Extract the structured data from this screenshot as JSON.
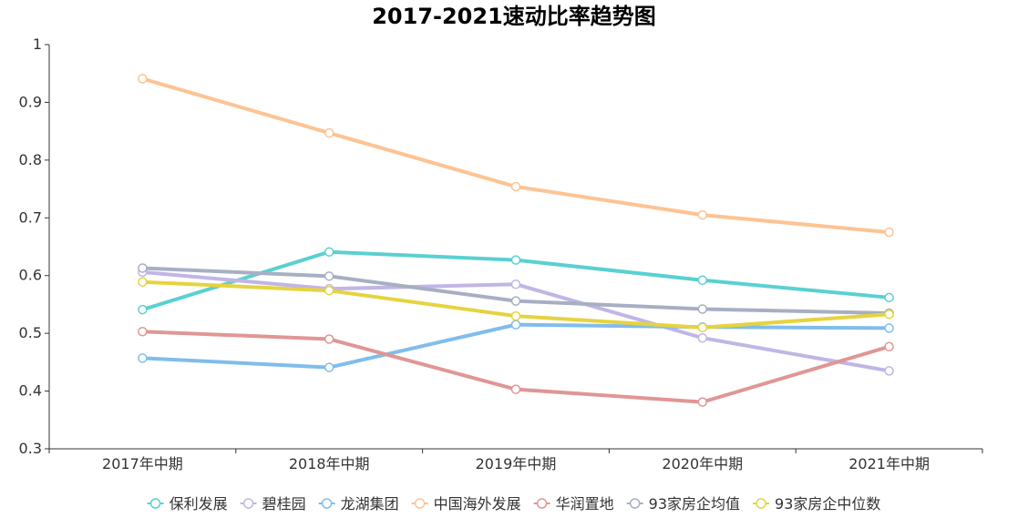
{
  "chart_data": {
    "type": "line",
    "title": "2017-2021速动比率趋势图",
    "xlabel": "",
    "ylabel": "",
    "categories": [
      "2017年中期",
      "2018年中期",
      "2019年中期",
      "2020年中期",
      "2021年中期"
    ],
    "ylim": [
      0.3,
      1
    ],
    "yticks": [
      "0.3",
      "0.4",
      "0.5",
      "0.6",
      "0.7",
      "0.8",
      "0.9",
      "1"
    ],
    "grid": false,
    "legend_position": "bottom",
    "series": [
      {
        "name": "保利发展",
        "color": "#5ad0d2",
        "values": [
          0.541,
          0.641,
          0.627,
          0.592,
          0.562
        ]
      },
      {
        "name": "碧桂园",
        "color": "#c1b5e6",
        "values": [
          0.606,
          0.577,
          0.585,
          0.492,
          0.435
        ]
      },
      {
        "name": "龙湖集团",
        "color": "#7fbdec",
        "values": [
          0.457,
          0.441,
          0.515,
          0.511,
          0.509
        ]
      },
      {
        "name": "中国海外发展",
        "color": "#fdc393",
        "values": [
          0.941,
          0.847,
          0.754,
          0.705,
          0.675
        ]
      },
      {
        "name": "华润置地",
        "color": "#e09696",
        "values": [
          0.503,
          0.49,
          0.403,
          0.381,
          0.477
        ]
      },
      {
        "name": "93家房企均值",
        "color": "#a7afc3",
        "values": [
          0.613,
          0.599,
          0.556,
          0.542,
          0.535
        ]
      },
      {
        "name": "93家房企中位数",
        "color": "#e6d33e",
        "values": [
          0.589,
          0.574,
          0.53,
          0.51,
          0.533
        ]
      }
    ]
  }
}
